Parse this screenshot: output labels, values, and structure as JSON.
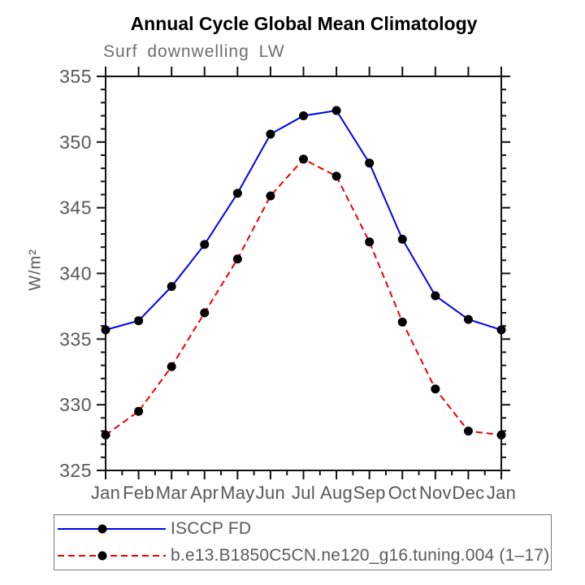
{
  "chart_data": {
    "type": "line",
    "title": "Annual Cycle Global Mean Climatology",
    "subtitle": "Surf downwelling LW",
    "ylabel": "W/m²",
    "xlabel": "",
    "x_categories": [
      "Jan",
      "Feb",
      "Mar",
      "Apr",
      "May",
      "Jun",
      "Jul",
      "Aug",
      "Sep",
      "Oct",
      "Nov",
      "Dec",
      "Jan"
    ],
    "ylim": [
      325,
      355
    ],
    "y_major_step": 5,
    "y_minor_step": 1,
    "x_minor_ticks_per_interval": 1,
    "grid": false,
    "legend_position": "bottom-left",
    "axis_color": "#111111",
    "tick_label_color": "#585858",
    "marker_color": "#000000",
    "series": [
      {
        "name": "ISCCP FD",
        "color": "#0000ee",
        "line_style": "solid",
        "marker": "filled-circle",
        "values": [
          335.7,
          336.4,
          339.0,
          342.2,
          346.1,
          350.6,
          352.0,
          352.4,
          348.4,
          342.6,
          338.3,
          336.5,
          335.7
        ]
      },
      {
        "name": "b.e13.B1850C5CN.ne120_g16.tuning.004 (1–17)",
        "color": "#ee0000",
        "line_style": "dashed",
        "marker": "filled-circle",
        "values": [
          327.7,
          329.5,
          332.9,
          337.0,
          341.1,
          345.9,
          348.7,
          347.4,
          342.4,
          336.3,
          331.2,
          328.0,
          327.7
        ]
      }
    ]
  }
}
